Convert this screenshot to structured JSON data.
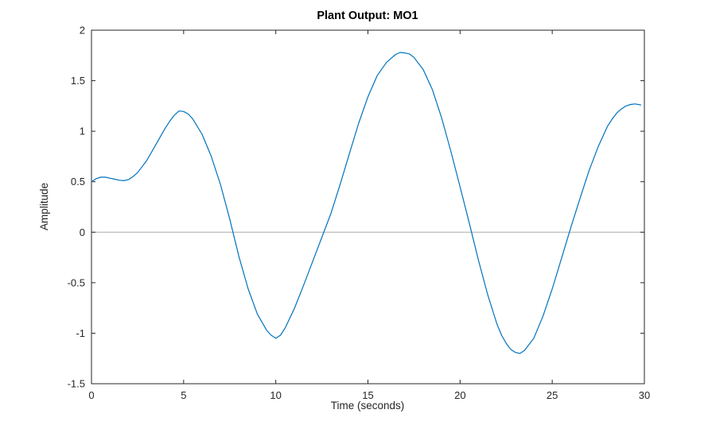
{
  "chart_data": {
    "type": "line",
    "title": "Plant Output: MO1",
    "xlabel": "Time (seconds)",
    "ylabel": "Amplitude",
    "xlim": [
      0,
      30
    ],
    "ylim": [
      -1.5,
      2
    ],
    "xticks": [
      0,
      5,
      10,
      15,
      20,
      25,
      30
    ],
    "yticks": [
      -1.5,
      -1,
      -0.5,
      0,
      0.5,
      1,
      1.5,
      2
    ],
    "grid": false,
    "legend": "none",
    "line_color": "#0072BD",
    "axis_color": "#262626",
    "zero_line": true,
    "zero_line_color": "#ababab",
    "background_color": "#ffffff",
    "series": [
      {
        "name": "MO1",
        "x": [
          0,
          0.25,
          0.5,
          0.75,
          1,
          1.25,
          1.5,
          1.75,
          2,
          2.25,
          2.5,
          3,
          3.5,
          4,
          4.25,
          4.5,
          4.75,
          5,
          5.25,
          5.5,
          6,
          6.5,
          7,
          7.5,
          8,
          8.5,
          9,
          9.5,
          9.75,
          10,
          10.25,
          10.5,
          11,
          11.5,
          12,
          12.5,
          13,
          13.5,
          14,
          14.5,
          15,
          15.5,
          16,
          16.25,
          16.5,
          16.75,
          17,
          17.25,
          17.5,
          18,
          18.5,
          19,
          19.5,
          20,
          20.5,
          21,
          21.5,
          22,
          22.25,
          22.5,
          22.75,
          23,
          23.25,
          23.5,
          24,
          24.5,
          25,
          25.5,
          26,
          26.5,
          27,
          27.5,
          28,
          28.25,
          28.5,
          28.75,
          29,
          29.25,
          29.5,
          29.8
        ],
        "y": [
          0.5,
          0.53,
          0.545,
          0.545,
          0.535,
          0.525,
          0.515,
          0.51,
          0.52,
          0.55,
          0.59,
          0.71,
          0.87,
          1.03,
          1.1,
          1.16,
          1.2,
          1.195,
          1.17,
          1.12,
          0.97,
          0.75,
          0.47,
          0.13,
          -0.24,
          -0.56,
          -0.81,
          -0.97,
          -1.02,
          -1.05,
          -1.02,
          -0.95,
          -0.76,
          -0.53,
          -0.29,
          -0.05,
          0.19,
          0.48,
          0.78,
          1.08,
          1.34,
          1.55,
          1.68,
          1.72,
          1.76,
          1.78,
          1.775,
          1.765,
          1.73,
          1.61,
          1.41,
          1.13,
          0.8,
          0.45,
          0.09,
          -0.28,
          -0.62,
          -0.91,
          -1.02,
          -1.1,
          -1.16,
          -1.19,
          -1.2,
          -1.17,
          -1.05,
          -0.83,
          -0.56,
          -0.26,
          0.04,
          0.33,
          0.61,
          0.85,
          1.05,
          1.12,
          1.18,
          1.22,
          1.25,
          1.265,
          1.27,
          1.26
        ]
      }
    ]
  }
}
